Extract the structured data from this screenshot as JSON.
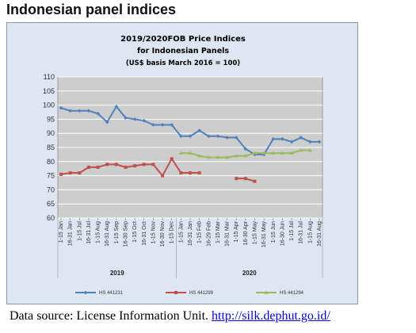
{
  "page": {
    "heading": "Indonesian panel indices",
    "source_prefix": "Data source: License Information Unit.",
    "source_link": "http://silk.dephut.go.id/"
  },
  "chart_data": {
    "type": "line",
    "title_lines": [
      "2019/2020FOB Price Indices",
      "for Indonesian Panels",
      "(US$ basis March 2016 = 100)"
    ],
    "ylim": [
      60,
      110
    ],
    "yticks": [
      60,
      65,
      70,
      75,
      80,
      85,
      90,
      95,
      100,
      105,
      110
    ],
    "grid": true,
    "legend_position": "bottom",
    "x": [
      "1-15 Jan",
      "16-31 Jan",
      "1-15 Jul",
      "16-31 Jul",
      "1-15 Aug",
      "16-31 Aug",
      "1-15 Sep",
      "16-30 Sep",
      "1-15 Oct",
      "16-31 Oct",
      "1-15 Nov",
      "16-30 Nov",
      "1-15 Dec",
      "1-15 Jan",
      "16-31 Jan",
      "1-15 Feb",
      "16-29 Feb",
      "1-15 Mar",
      "16-31 Mar",
      "1-15 Apr",
      "16-30 Apr",
      "1-15 May",
      "16-31 May",
      "1-15 Jun",
      "16-30 Jun",
      "1-15 Jul",
      "16-31 Jul",
      "1-15 Aug",
      "16-31 Aug"
    ],
    "year_groups": [
      {
        "label": "2019",
        "from": 0,
        "to": 12
      },
      {
        "label": "2020",
        "from": 13,
        "to": 28
      }
    ],
    "series": [
      {
        "name": "HS 441231",
        "color": "#4f81bd",
        "marker": "diamond",
        "values": [
          99,
          98,
          98,
          98,
          97,
          94,
          99.5,
          95.5,
          95,
          94.5,
          93,
          93,
          93,
          89,
          89,
          91,
          89,
          89,
          88.5,
          88.5,
          84.5,
          82.5,
          82.5,
          88,
          88,
          87,
          88.5,
          87,
          87
        ]
      },
      {
        "name": "HS 441299",
        "color": "#c0504d",
        "marker": "square",
        "values": [
          75.5,
          76,
          76,
          78,
          78,
          79,
          79,
          78,
          78.5,
          79,
          79,
          75,
          81,
          76,
          76,
          76,
          null,
          null,
          null,
          74,
          74,
          73,
          null,
          null,
          null,
          null,
          null,
          null,
          null
        ]
      },
      {
        "name": "HS 441294",
        "color": "#9bbb59",
        "marker": "triangle",
        "values": [
          null,
          null,
          null,
          null,
          null,
          null,
          null,
          null,
          null,
          null,
          null,
          null,
          null,
          83,
          83,
          82,
          81.5,
          81.5,
          81.5,
          82,
          82,
          83,
          83,
          83,
          83,
          83,
          84,
          84,
          null
        ]
      }
    ]
  }
}
